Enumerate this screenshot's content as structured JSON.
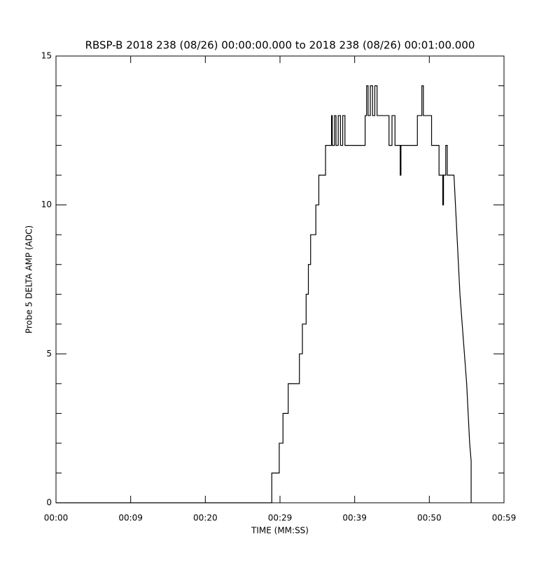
{
  "chart_data": {
    "type": "line",
    "title": "RBSP-B 2018 238 (08/26) 00:00:00.000 to 2018 238 (08/26) 00:01:00.000",
    "xlabel": "TIME (MM:SS)",
    "ylabel": "Probe 5 DELTA AMP (ADC)",
    "xlim": [
      0,
      60
    ],
    "ylim": [
      0,
      15
    ],
    "xticks": [
      {
        "value": 0,
        "label": "00:00"
      },
      {
        "value": 10,
        "label": "00:09"
      },
      {
        "value": 20,
        "label": "00:20"
      },
      {
        "value": 30,
        "label": "00:29"
      },
      {
        "value": 40,
        "label": "00:39"
      },
      {
        "value": 50,
        "label": "00:50"
      },
      {
        "value": 60,
        "label": "00:59"
      }
    ],
    "yticks": [
      0,
      5,
      10,
      15
    ],
    "yminorticks": [
      1,
      2,
      3,
      4,
      6,
      7,
      8,
      9,
      11,
      12,
      13,
      14
    ],
    "color": "#000000",
    "x": [
      0,
      28.9,
      28.9,
      29.9,
      29.9,
      30.4,
      30.4,
      31.1,
      31.1,
      32.6,
      32.6,
      33.0,
      33.0,
      33.5,
      33.5,
      33.8,
      33.8,
      34.1,
      34.1,
      34.8,
      34.8,
      35.2,
      35.2,
      36.1,
      36.1,
      36.9,
      36.9,
      37.0,
      37.0,
      37.3,
      37.3,
      37.5,
      37.5,
      37.8,
      37.8,
      38.1,
      38.1,
      38.4,
      38.4,
      38.7,
      38.7,
      41.4,
      41.4,
      41.6,
      41.6,
      41.8,
      41.8,
      42.1,
      42.1,
      42.4,
      42.4,
      42.7,
      42.7,
      43.0,
      43.0,
      44.6,
      44.6,
      45.0,
      45.0,
      45.4,
      45.4,
      46.1,
      46.1,
      46.2,
      46.2,
      48.4,
      48.4,
      49.0,
      49.0,
      49.2,
      49.2,
      50.3,
      50.3,
      51.3,
      51.3,
      51.8,
      51.8,
      51.9,
      51.9,
      52.2,
      52.2,
      52.4,
      52.4,
      53.3,
      53.5,
      53.7,
      53.9,
      54.1,
      54.4,
      54.7,
      55.0,
      55.2,
      55.4,
      55.6,
      55.6
    ],
    "values": [
      0,
      0,
      1,
      1,
      2,
      2,
      3,
      3,
      4,
      4,
      5,
      5,
      6,
      6,
      7,
      7,
      8,
      8,
      9,
      9,
      10,
      10,
      11,
      11,
      12,
      12,
      13,
      13,
      12,
      12,
      13,
      13,
      12,
      12,
      13,
      13,
      12,
      12,
      13,
      13,
      12,
      12,
      13,
      13,
      14,
      14,
      13,
      13,
      14,
      14,
      13,
      13,
      14,
      14,
      13,
      13,
      12,
      12,
      13,
      13,
      12,
      12,
      11,
      11,
      12,
      12,
      13,
      13,
      14,
      14,
      13,
      13,
      12,
      12,
      11,
      11,
      10,
      10,
      11,
      11,
      12,
      12,
      11,
      11,
      10,
      9,
      8,
      7,
      6,
      5,
      4,
      3,
      2,
      1.4,
      0
    ]
  }
}
